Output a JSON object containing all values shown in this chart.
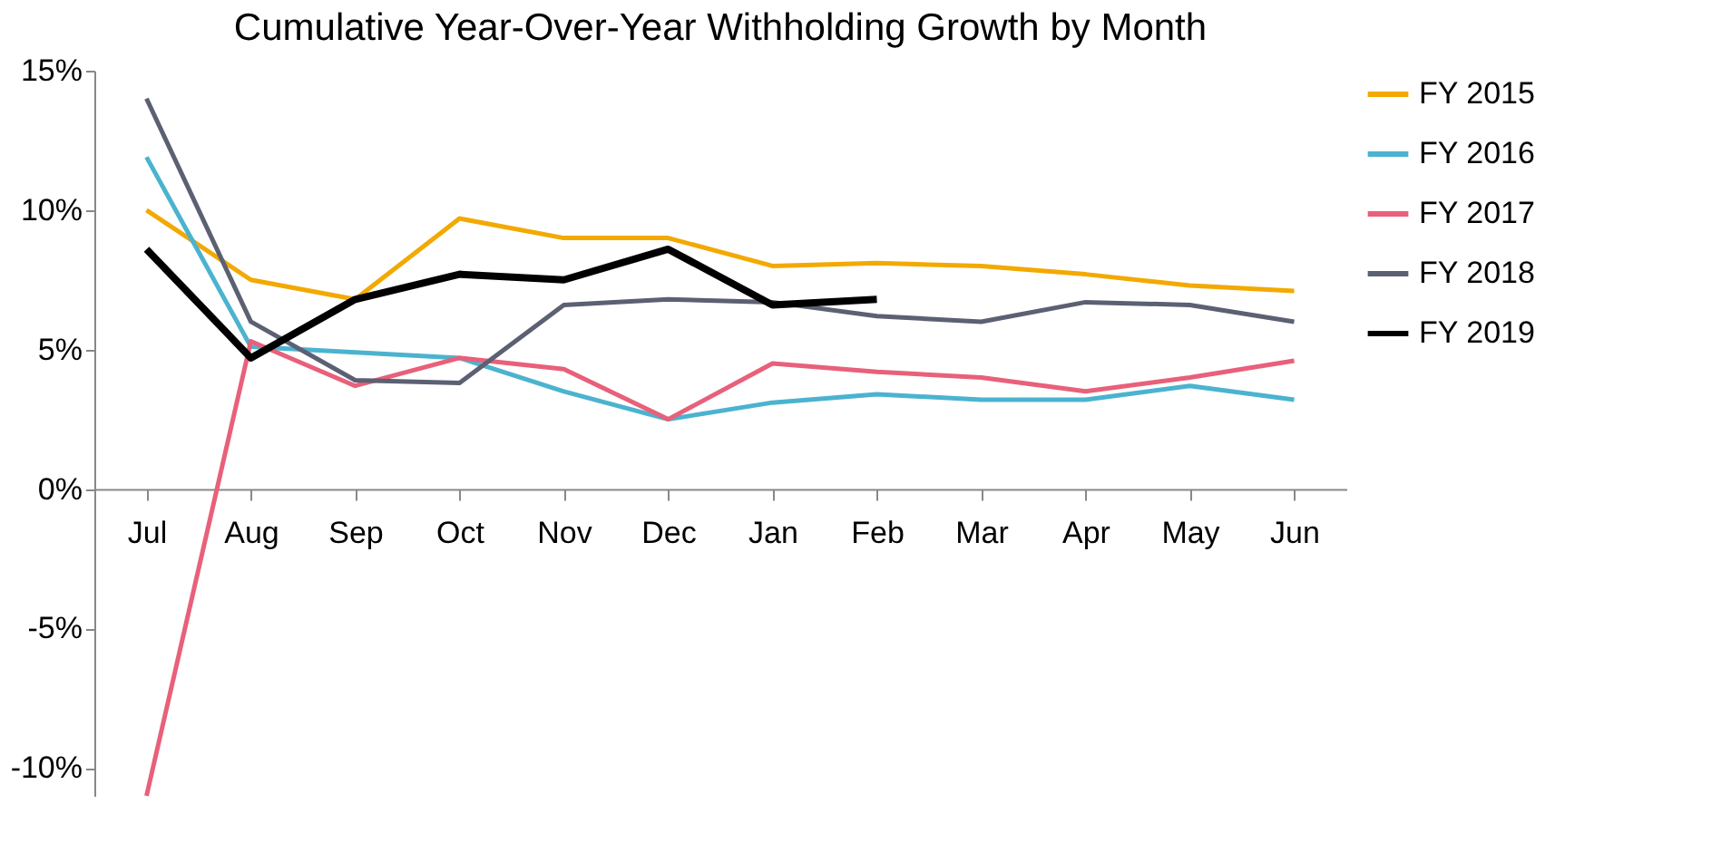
{
  "chart_data": {
    "type": "line",
    "title": "Cumulative Year-Over-Year Withholding Growth by Month",
    "categories": [
      "Jul",
      "Aug",
      "Sep",
      "Oct",
      "Nov",
      "Dec",
      "Jan",
      "Feb",
      "Mar",
      "Apr",
      "May",
      "Jun"
    ],
    "series": [
      {
        "name": "FY 2015",
        "color": "#f2a900",
        "values": [
          10.0,
          7.5,
          6.8,
          9.7,
          9.0,
          9.0,
          8.0,
          8.1,
          8.0,
          7.7,
          7.3,
          7.1
        ]
      },
      {
        "name": "FY 2016",
        "color": "#4bb3cf",
        "values": [
          11.9,
          5.1,
          4.9,
          4.7,
          3.5,
          2.5,
          3.1,
          3.4,
          3.2,
          3.2,
          3.7,
          3.2
        ]
      },
      {
        "name": "FY 2017",
        "color": "#e8607a",
        "values": [
          -11,
          5.3,
          3.7,
          4.7,
          4.3,
          2.5,
          4.5,
          4.2,
          4.0,
          3.5,
          4.0,
          4.6
        ]
      },
      {
        "name": "FY 2018",
        "color": "#5b6073",
        "values": [
          14.0,
          6.0,
          3.9,
          3.8,
          6.6,
          6.8,
          6.7,
          6.2,
          6.0,
          6.7,
          6.6,
          6.0
        ]
      },
      {
        "name": "FY 2019",
        "color": "#000000",
        "values": [
          8.6,
          4.7,
          6.8,
          7.7,
          7.5,
          8.6,
          6.6,
          6.8,
          null,
          null,
          null,
          null
        ]
      }
    ],
    "ylim": [
      -11,
      15
    ],
    "yticks": [
      {
        "value": -10,
        "label": "-10%"
      },
      {
        "value": -5,
        "label": "-5%"
      },
      {
        "value": 0,
        "label": "0%"
      },
      {
        "value": 5,
        "label": "5%"
      },
      {
        "value": 10,
        "label": "10%"
      },
      {
        "value": 15,
        "label": "15%"
      }
    ],
    "grid": false,
    "legend": "right",
    "marker": "none",
    "line_style": "solid"
  }
}
